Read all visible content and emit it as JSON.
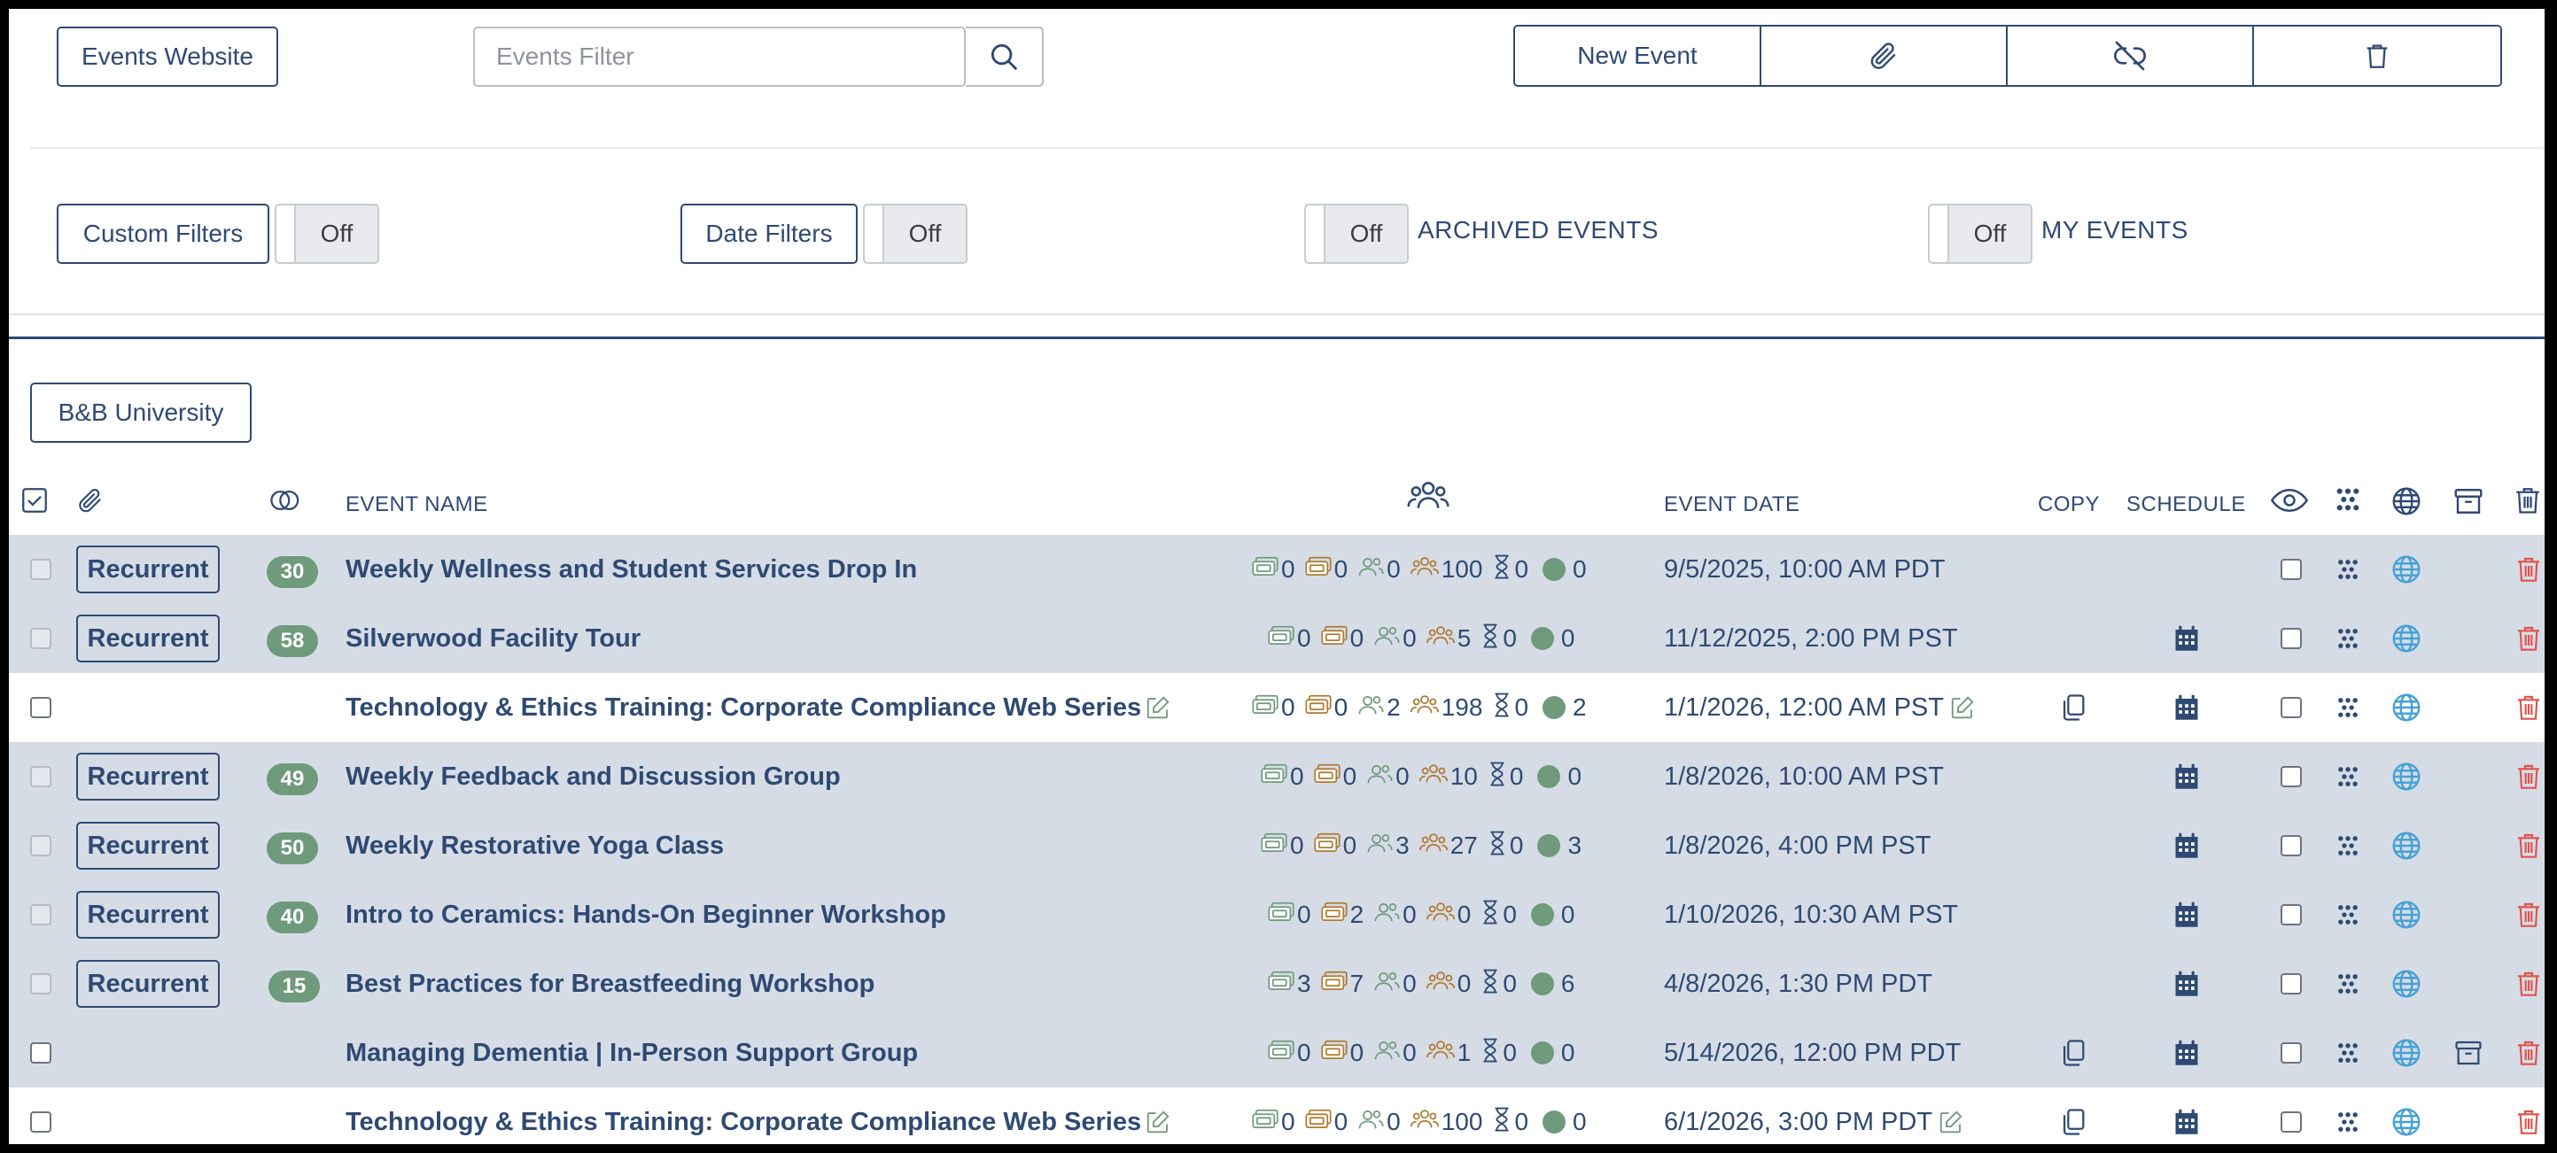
{
  "toolbar": {
    "events_website": "Events Website",
    "filter_placeholder": "Events Filter",
    "new_event": "New Event"
  },
  "filters": {
    "custom_filters": "Custom Filters",
    "custom_toggle": "Off",
    "date_filters": "Date Filters",
    "date_toggle": "Off",
    "archived_toggle": "Off",
    "archived_label": "ARCHIVED EVENTS",
    "my_toggle": "Off",
    "my_label": "MY EVENTS"
  },
  "group": {
    "label": "B&B University"
  },
  "table": {
    "headers": {
      "event_name": "EVENT NAME",
      "event_date": "EVENT DATE",
      "copy": "COPY",
      "schedule": "SCHEDULE"
    },
    "colors": {
      "accent": "#2e4a73",
      "green": "#6f9a7c",
      "orange": "#b07a2e",
      "red": "#e0524a",
      "globe": "#45a1d6",
      "shaded": "#d6dce6"
    },
    "rows": [
      {
        "shaded": true,
        "recurrent": "Recurrent",
        "count": "30",
        "name": "Weekly Wellness and Student Services Drop In",
        "edit": false,
        "s1": "0",
        "s2": "0",
        "s3": "0",
        "s4": "100",
        "s5": "0",
        "s6": "0",
        "date": "9/5/2025, 10:00 AM PDT",
        "date_edit": false,
        "copy": false,
        "schedule": false,
        "archive": false
      },
      {
        "shaded": true,
        "recurrent": "Recurrent",
        "count": "58",
        "name": "Silverwood Facility Tour",
        "edit": false,
        "s1": "0",
        "s2": "0",
        "s3": "0",
        "s4": "5",
        "s5": "0",
        "s6": "0",
        "date": "11/12/2025, 2:00 PM PST",
        "date_edit": false,
        "copy": false,
        "schedule": true,
        "archive": false
      },
      {
        "shaded": false,
        "recurrent": "",
        "count": "",
        "name": "Technology & Ethics Training: Corporate Compliance Web Series",
        "edit": true,
        "s1": "0",
        "s2": "0",
        "s3": "2",
        "s4": "198",
        "s5": "0",
        "s6": "2",
        "date": "1/1/2026, 12:00 AM PST",
        "date_edit": true,
        "copy": true,
        "schedule": true,
        "archive": false
      },
      {
        "shaded": true,
        "recurrent": "Recurrent",
        "count": "49",
        "name": "Weekly Feedback and Discussion Group",
        "edit": false,
        "s1": "0",
        "s2": "0",
        "s3": "0",
        "s4": "10",
        "s5": "0",
        "s6": "0",
        "date": "1/8/2026, 10:00 AM PST",
        "date_edit": false,
        "copy": false,
        "schedule": true,
        "archive": false
      },
      {
        "shaded": true,
        "recurrent": "Recurrent",
        "count": "50",
        "name": "Weekly Restorative Yoga Class",
        "edit": false,
        "s1": "0",
        "s2": "0",
        "s3": "3",
        "s4": "27",
        "s5": "0",
        "s6": "3",
        "date": "1/8/2026, 4:00 PM PST",
        "date_edit": false,
        "copy": false,
        "schedule": true,
        "archive": false
      },
      {
        "shaded": true,
        "recurrent": "Recurrent",
        "count": "40",
        "name": "Intro to Ceramics: Hands-On Beginner Workshop",
        "edit": false,
        "s1": "0",
        "s2": "2",
        "s3": "0",
        "s4": "0",
        "s5": "0",
        "s6": "0",
        "date": "1/10/2026, 10:30 AM PST",
        "date_edit": false,
        "copy": false,
        "schedule": true,
        "archive": false
      },
      {
        "shaded": true,
        "recurrent": "Recurrent",
        "count": "15",
        "name": "Best Practices for Breastfeeding Workshop",
        "edit": false,
        "s1": "3",
        "s2": "7",
        "s3": "0",
        "s4": "0",
        "s5": "0",
        "s6": "6",
        "date": "4/8/2026, 1:30 PM PDT",
        "date_edit": false,
        "copy": false,
        "schedule": true,
        "archive": false
      },
      {
        "shaded": true,
        "recurrent": "",
        "count": "",
        "name": "Managing Dementia | In-Person Support Group",
        "edit": false,
        "s1": "0",
        "s2": "0",
        "s3": "0",
        "s4": "1",
        "s5": "0",
        "s6": "0",
        "date": "5/14/2026, 12:00 PM PDT",
        "date_edit": false,
        "copy": true,
        "schedule": true,
        "archive": true
      },
      {
        "shaded": false,
        "recurrent": "",
        "count": "",
        "name": "Technology & Ethics Training: Corporate Compliance Web Series",
        "edit": true,
        "s1": "0",
        "s2": "0",
        "s3": "0",
        "s4": "100",
        "s5": "0",
        "s6": "0",
        "date": "6/1/2026, 3:00 PM PDT",
        "date_edit": true,
        "copy": true,
        "schedule": true,
        "archive": false
      }
    ]
  }
}
